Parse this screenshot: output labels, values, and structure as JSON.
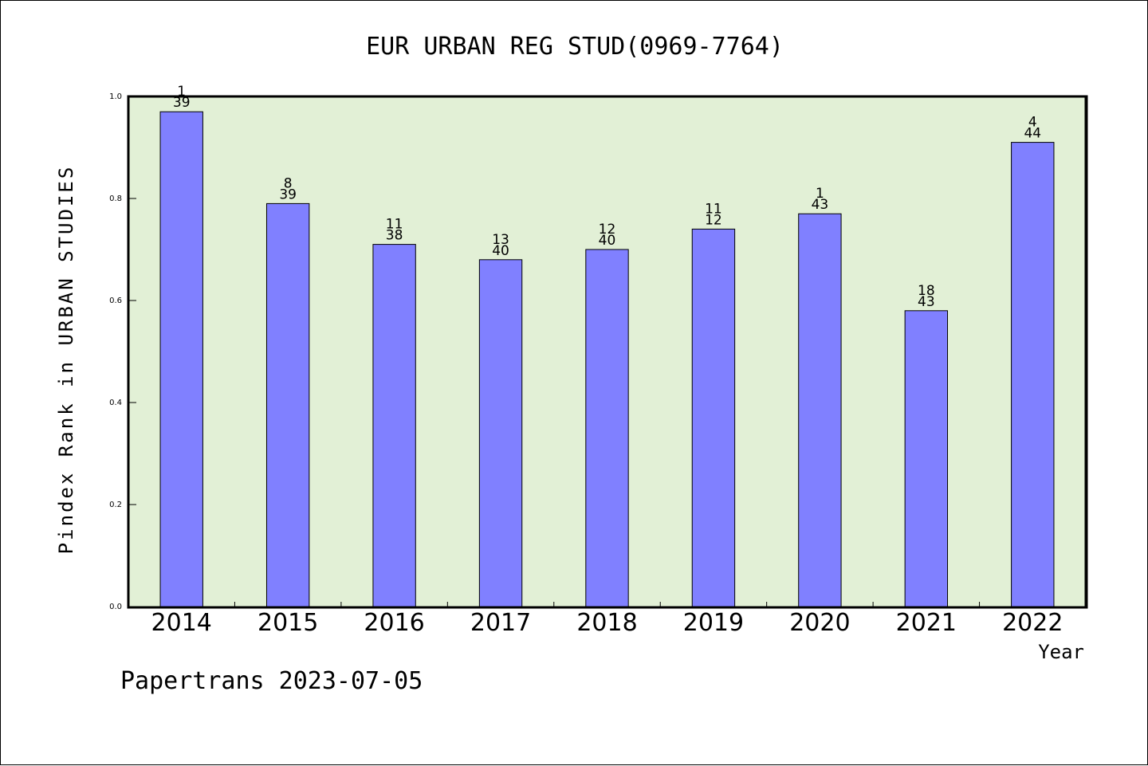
{
  "chart_data": {
    "type": "bar",
    "title": "EUR URBAN REG STUD(0969-7764)",
    "xlabel": "Year",
    "ylabel": "Pindex Rank in URBAN STUDIES",
    "ylim": [
      0,
      1.0
    ],
    "yticks": [
      "0.0",
      "0.2",
      "0.4",
      "0.6",
      "0.8",
      "1.0"
    ],
    "categories": [
      "2014",
      "2015",
      "2016",
      "2017",
      "2018",
      "2019",
      "2020",
      "2021",
      "2022"
    ],
    "values": [
      0.97,
      0.79,
      0.71,
      0.68,
      0.7,
      0.74,
      0.77,
      0.58,
      0.91
    ],
    "rank_labels": [
      "1",
      "8",
      "11",
      "13",
      "12",
      "11",
      "1",
      "18",
      "4"
    ],
    "total_labels": [
      "39",
      "39",
      "38",
      "40",
      "40",
      "12",
      "43",
      "43",
      "44"
    ],
    "bar_color": "#8080ff",
    "plot_background": "#e2f0d6",
    "grid": false
  },
  "footer": "Papertrans 2023-07-05"
}
